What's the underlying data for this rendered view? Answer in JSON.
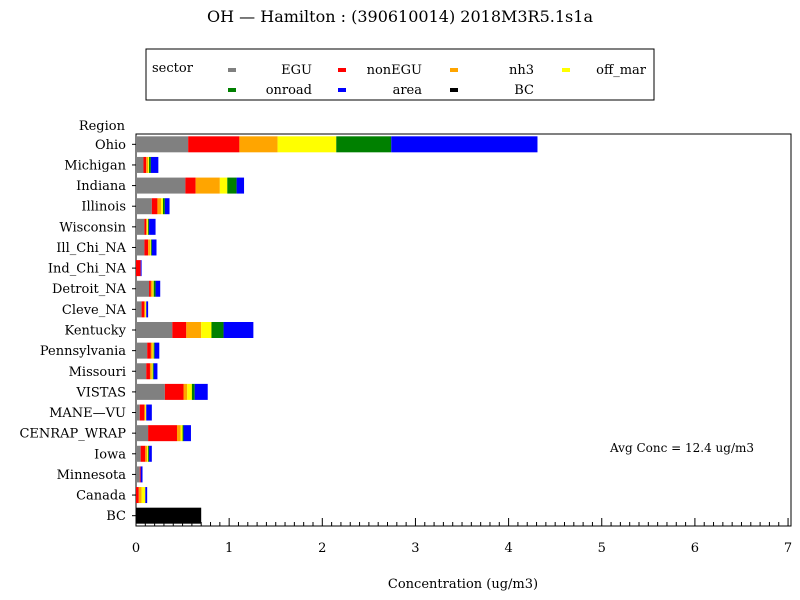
{
  "chart_data": {
    "type": "bar",
    "orientation": "horizontal",
    "stacked": true,
    "title": "OH  —  Hamilton  :  (390610014)  2018M3R5.1s1a",
    "xlabel": "Concentration  (ug/m3)",
    "ylabel": "Region",
    "xlim": [
      0,
      7
    ],
    "xticks": [
      "0",
      "1",
      "2",
      "3",
      "4",
      "5",
      "6",
      "7"
    ],
    "legend_title": "sector",
    "legend_position": "top",
    "annotation": "Avg Conc  =   12.4  ug/m3",
    "categories": [
      "Ohio",
      "Michigan",
      "Indiana",
      "Illinois",
      "Wisconsin",
      "Ill_Chi_NA",
      "Ind_Chi_NA",
      "Detroit_NA",
      "Cleve_NA",
      "Kentucky",
      "Pennsylvania",
      "Missouri",
      "VISTAS",
      "MANE—VU",
      "CENRAP_WRAP",
      "Iowa",
      "Minnesota",
      "Canada",
      "BC"
    ],
    "series": [
      {
        "name": "EGU",
        "color": "#808080",
        "values": [
          0.56,
          0.08,
          0.53,
          0.17,
          0.09,
          0.09,
          0.0,
          0.14,
          0.06,
          0.39,
          0.12,
          0.11,
          0.31,
          0.04,
          0.13,
          0.05,
          0.04,
          0.0,
          0.0
        ]
      },
      {
        "name": "nonEGU",
        "color": "#ff0000",
        "values": [
          0.55,
          0.03,
          0.11,
          0.06,
          0.02,
          0.04,
          0.05,
          0.02,
          0.03,
          0.15,
          0.04,
          0.04,
          0.2,
          0.05,
          0.31,
          0.05,
          0.01,
          0.03,
          0.0
        ]
      },
      {
        "name": "nh3",
        "color": "#ffa500",
        "values": [
          0.41,
          0.02,
          0.26,
          0.04,
          0.01,
          0.02,
          0.0,
          0.02,
          0.01,
          0.16,
          0.02,
          0.02,
          0.04,
          0.01,
          0.04,
          0.02,
          0.0,
          0.03,
          0.0
        ]
      },
      {
        "name": "off_mar",
        "color": "#ffff00",
        "values": [
          0.63,
          0.01,
          0.08,
          0.02,
          0.01,
          0.01,
          0.0,
          0.01,
          0.01,
          0.11,
          0.01,
          0.01,
          0.05,
          0.01,
          0.02,
          0.01,
          0.0,
          0.04,
          0.0
        ]
      },
      {
        "name": "onroad",
        "color": "#008000",
        "values": [
          0.59,
          0.02,
          0.1,
          0.02,
          0.01,
          0.01,
          0.0,
          0.02,
          0.0,
          0.13,
          0.01,
          0.01,
          0.03,
          0.0,
          0.01,
          0.01,
          0.0,
          0.0,
          0.0
        ]
      },
      {
        "name": "area",
        "color": "#0000ff",
        "values": [
          1.57,
          0.08,
          0.08,
          0.05,
          0.07,
          0.05,
          0.01,
          0.05,
          0.02,
          0.32,
          0.05,
          0.04,
          0.14,
          0.06,
          0.08,
          0.03,
          0.02,
          0.02,
          0.0
        ]
      },
      {
        "name": "BC",
        "color": "#000000",
        "values": [
          0.0,
          0.0,
          0.0,
          0.0,
          0.0,
          0.0,
          0.0,
          0.0,
          0.0,
          0.0,
          0.0,
          0.0,
          0.0,
          0.0,
          0.0,
          0.0,
          0.0,
          0.0,
          0.7
        ]
      }
    ],
    "legend_order": [
      "EGU",
      "nonEGU",
      "nh3",
      "off_mar",
      "onroad",
      "area",
      "BC"
    ],
    "grid": false
  }
}
